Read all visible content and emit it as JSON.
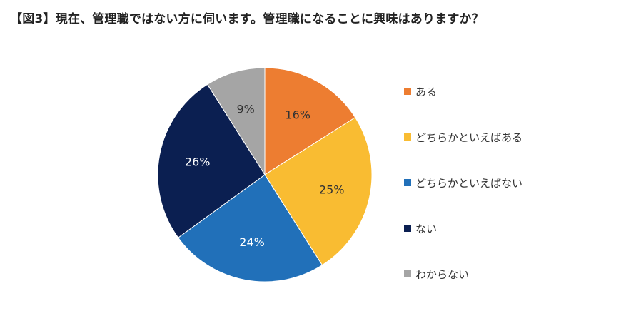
{
  "title": "【図3】現在、管理職ではない方に伺います。管理職になることに興味はありますか？",
  "chart_data": {
    "type": "pie",
    "title": "【図3】現在、管理職ではない方に伺います。管理職になることに興味はありますか？",
    "legend_position": "right",
    "start_angle_deg": 0,
    "direction": "clockwise",
    "slices": [
      {
        "name": "ある",
        "value": 16,
        "label": "16%",
        "color": "#ED7D31",
        "label_color": "#333333"
      },
      {
        "name": "どちらかといえばある",
        "value": 25,
        "label": "25%",
        "color": "#F9BC32",
        "label_color": "#333333"
      },
      {
        "name": "どちらかといえばない",
        "value": 24,
        "label": "24%",
        "color": "#2170B9",
        "label_color": "#ffffff"
      },
      {
        "name": "ない",
        "value": 26,
        "label": "26%",
        "color": "#0B1F51",
        "label_color": "#ffffff"
      },
      {
        "name": "わからない",
        "value": 9,
        "label": "9%",
        "color": "#A5A5A5",
        "label_color": "#333333"
      }
    ]
  }
}
